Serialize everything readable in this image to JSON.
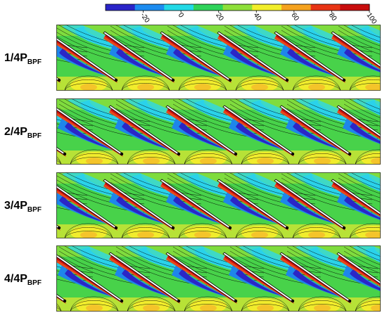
{
  "chart_data": {
    "type": "heatmap",
    "colorbar": {
      "range": [
        -40,
        100
      ],
      "ticks": [
        -20,
        0,
        20,
        40,
        60,
        80,
        100
      ],
      "tick_labels": [
        "-20",
        "0",
        "20",
        "40",
        "60",
        "80",
        "100"
      ],
      "colors": [
        "#2a24c8",
        "#1c8cf0",
        "#22d9e6",
        "#2fd35a",
        "#8ee03a",
        "#f2ee2a",
        "#f5a21e",
        "#e83414",
        "#c80d0d"
      ]
    },
    "panels": [
      {
        "label_main": "1/4P",
        "label_sub": "BPF"
      },
      {
        "label_main": "2/4P",
        "label_sub": "BPF"
      },
      {
        "label_main": "3/4P",
        "label_sub": "BPF"
      },
      {
        "label_main": "4/4P",
        "label_sub": "BPF"
      }
    ],
    "blades_per_panel": 6
  }
}
